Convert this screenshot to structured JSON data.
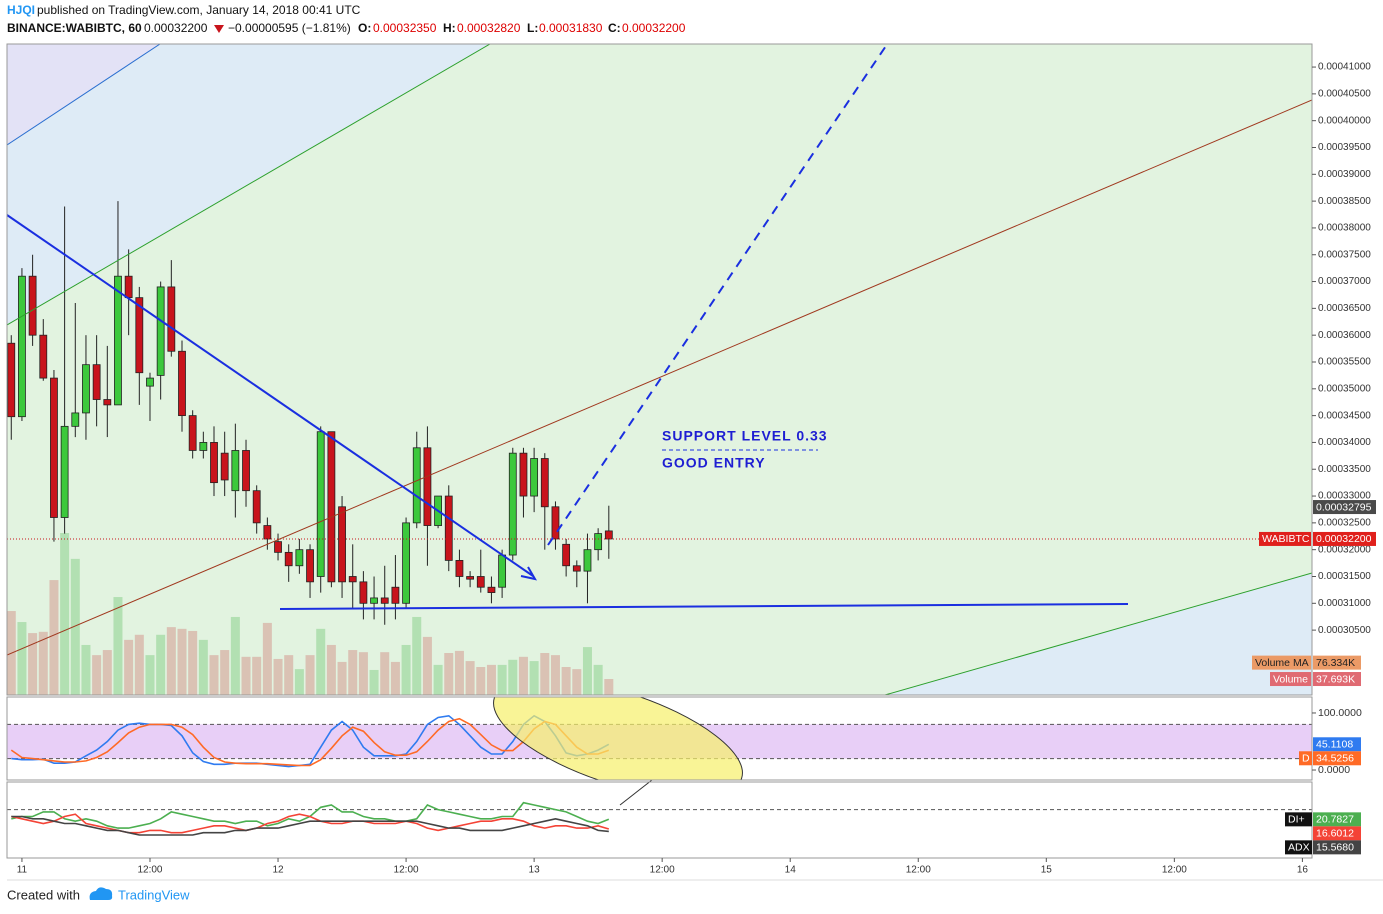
{
  "header": {
    "author": "HJQI",
    "published": "published on TradingView.com, January 14, 2018 00:41 UTC",
    "symbol": "BINANCE:WABIBTC, 60",
    "last": "0.00032200",
    "change": "−0.00000595 (−1.81%)",
    "open_label": "O:",
    "open": "0.00032350",
    "high_label": "H:",
    "high": "0.00032820",
    "low_label": "L:",
    "low": "0.00031830",
    "close_label": "C:",
    "close": "0.00032200"
  },
  "footer": {
    "created": "Created with",
    "brand": "TradingView"
  },
  "chart_data": [
    {
      "type": "candlestick",
      "name": "WABIBTC",
      "up_color": "#3cc83c",
      "down_color": "#c8141c",
      "x": [
        -1,
        0,
        1,
        2,
        3,
        4,
        5,
        6,
        7,
        8,
        9,
        10,
        11,
        12,
        13,
        14,
        15,
        16,
        17,
        18,
        19,
        20,
        21,
        22,
        23,
        24,
        25,
        26,
        27,
        28,
        29,
        30,
        31,
        32,
        33,
        34,
        35,
        36,
        37,
        38,
        39,
        40,
        41,
        42,
        43,
        44,
        45,
        46,
        47,
        48,
        49,
        50,
        51,
        52,
        53,
        54,
        55
      ],
      "open": [
        0.0003585,
        0.0003448,
        0.000371,
        0.00036,
        0.000352,
        0.000326,
        0.000343,
        0.0003455,
        0.0003545,
        0.000348,
        0.000347,
        0.000371,
        0.000367,
        0.0003505,
        0.0003525,
        0.000369,
        0.000357,
        0.000345,
        0.0003385,
        0.00034,
        0.000338,
        0.000331,
        0.0003385,
        0.000331,
        0.0003245,
        0.0003215,
        0.0003195,
        0.000317,
        0.00032,
        0.000315,
        0.000342,
        0.000328,
        0.000315,
        0.000314,
        0.00031,
        0.000311,
        0.000313,
        0.00031,
        0.000325,
        0.000339,
        0.0003245,
        0.00033,
        0.000318,
        0.000315,
        0.000315,
        0.000313,
        0.000313,
        0.000319,
        0.000338,
        0.00033,
        0.000337,
        0.000328,
        0.000321,
        0.000317,
        0.000316,
        0.00032,
        0.0003235
      ],
      "high": [
        0.00036,
        0.0003725,
        0.000375,
        0.000363,
        0.0003535,
        0.000384,
        0.000366,
        0.00036,
        0.00036,
        0.000358,
        0.000385,
        0.000376,
        0.000369,
        0.000353,
        0.00037,
        0.000374,
        0.000359,
        0.000346,
        0.000342,
        0.000343,
        0.000342,
        0.0003435,
        0.0003405,
        0.000332,
        0.000326,
        0.000323,
        0.000321,
        0.000322,
        0.000321,
        0.000343,
        0.000342,
        0.00033,
        0.000321,
        0.000316,
        0.000315,
        0.000317,
        0.000319,
        0.000326,
        0.000342,
        0.000343,
        0.00033,
        0.000332,
        0.00032,
        0.000316,
        0.00032,
        0.000315,
        0.00032,
        0.000339,
        0.000339,
        0.000339,
        0.000338,
        0.000329,
        0.000322,
        0.000318,
        0.000323,
        0.000324,
        0.0003282
      ],
      "low": [
        0.0003405,
        0.000344,
        0.000358,
        0.0003515,
        0.0003215,
        0.000323,
        0.000341,
        0.0003405,
        0.000343,
        0.000341,
        0.000347,
        0.00036,
        0.000347,
        0.000344,
        0.000348,
        0.000356,
        0.000342,
        0.000337,
        0.000337,
        0.00033,
        0.00033,
        0.000326,
        0.000328,
        0.000323,
        0.00032,
        0.000318,
        0.000314,
        0.0003155,
        0.000311,
        0.000312,
        0.000313,
        0.000311,
        0.000309,
        0.000307,
        0.000307,
        0.000306,
        0.000307,
        0.000309,
        0.000324,
        0.000317,
        0.000324,
        0.000316,
        0.000313,
        0.000313,
        0.000312,
        0.00031,
        0.000311,
        0.000318,
        0.000326,
        0.000327,
        0.00032,
        0.00032,
        0.000315,
        0.000313,
        0.00031,
        0.000318,
        0.0003183
      ],
      "close": [
        0.0003448,
        0.000371,
        0.00036,
        0.000352,
        0.000326,
        0.000343,
        0.0003455,
        0.0003545,
        0.000348,
        0.000347,
        0.000371,
        0.000367,
        0.000353,
        0.000352,
        0.000369,
        0.000357,
        0.000345,
        0.0003385,
        0.00034,
        0.0003325,
        0.000333,
        0.0003385,
        0.000331,
        0.000325,
        0.000322,
        0.0003195,
        0.000317,
        0.00032,
        0.000314,
        0.000342,
        0.000314,
        0.000314,
        0.000314,
        0.00031,
        0.000311,
        0.00031,
        0.00031,
        0.000325,
        0.000339,
        0.0003245,
        0.00033,
        0.000318,
        0.000315,
        0.0003145,
        0.000313,
        0.000312,
        0.000319,
        0.000338,
        0.00033,
        0.000337,
        0.000328,
        0.000322,
        0.000317,
        0.000316,
        0.00032,
        0.000323,
        0.000322
      ],
      "xlim": [
        -1.4,
        120.9
      ],
      "xticks": [
        {
          "value": 0,
          "label": "11"
        },
        {
          "value": 12,
          "label": "12:00"
        },
        {
          "value": 24,
          "label": "12"
        },
        {
          "value": 36,
          "label": "12:00"
        },
        {
          "value": 48,
          "label": "13"
        },
        {
          "value": 60,
          "label": "12:00"
        },
        {
          "value": 72,
          "label": "14"
        },
        {
          "value": 84,
          "label": "12:00"
        },
        {
          "value": 96,
          "label": "15"
        },
        {
          "value": 108,
          "label": "12:00"
        },
        {
          "value": 120,
          "label": "16"
        }
      ],
      "ylim": [
        0.0002929,
        0.0004143
      ],
      "yticks": [
        {
          "value": 0.000305,
          "label": "0.00030500"
        },
        {
          "value": 0.00031,
          "label": "0.00031000"
        },
        {
          "value": 0.000315,
          "label": "0.00031500"
        },
        {
          "value": 0.00032,
          "label": "0.00032000"
        },
        {
          "value": 0.000325,
          "label": "0.00032500"
        },
        {
          "value": 0.00033,
          "label": "0.00033000"
        },
        {
          "value": 0.000335,
          "label": "0.00033500"
        },
        {
          "value": 0.00034,
          "label": "0.00034000"
        },
        {
          "value": 0.000345,
          "label": "0.00034500"
        },
        {
          "value": 0.00035,
          "label": "0.00035000"
        },
        {
          "value": 0.000355,
          "label": "0.00035500"
        },
        {
          "value": 0.00036,
          "label": "0.00036000"
        },
        {
          "value": 0.000365,
          "label": "0.00036500"
        },
        {
          "value": 0.00037,
          "label": "0.00037000"
        },
        {
          "value": 0.000375,
          "label": "0.00037500"
        },
        {
          "value": 0.00038,
          "label": "0.00038000"
        },
        {
          "value": 0.000385,
          "label": "0.00038500"
        },
        {
          "value": 0.00039,
          "label": "0.00039000"
        },
        {
          "value": 0.000395,
          "label": "0.00039500"
        },
        {
          "value": 0.0004,
          "label": "0.00040000"
        },
        {
          "value": 0.000405,
          "label": "0.00040500"
        },
        {
          "value": 0.00041,
          "label": "0.00041000"
        }
      ],
      "last_price": {
        "value": 0.000322,
        "label": "0.00032200"
      },
      "cursor_price": {
        "value": 0.00032795,
        "label": "0.00032795"
      },
      "annotations": [
        "SUPPORT LEVEL 0.33",
        "GOOD ENTRY"
      ],
      "volume": {
        "name": "Volume",
        "up_color": "#a9dca9",
        "down_color": "#d8b9ac",
        "tag_color": "#e06a72",
        "last_label": "37.693K",
        "values": [
          198000,
          172000,
          146000,
          149000,
          271000,
          382000,
          321000,
          118000,
          94000,
          106000,
          231000,
          130000,
          142000,
          94000,
          142000,
          160000,
          156000,
          151000,
          130000,
          94000,
          106000,
          184000,
          90000,
          90000,
          170000,
          85000,
          94000,
          61000,
          94000,
          156000,
          118000,
          78000,
          106000,
          101000,
          59000,
          101000,
          78000,
          118000,
          184000,
          137000,
          71000,
          99000,
          104000,
          80000,
          66000,
          71000,
          71000,
          83000,
          90000,
          80000,
          99000,
          94000,
          66000,
          61000,
          113000,
          71000,
          37693
        ]
      },
      "volume_ma": {
        "name": "Volume MA",
        "value": 76334,
        "label": "76.334K",
        "color": "#eb9a66"
      }
    },
    {
      "type": "line",
      "ylim": [
        -17.5,
        128
      ],
      "yticks": [
        {
          "value": 100,
          "label": "100.0000"
        },
        {
          "value": 0,
          "label": "0.0000"
        }
      ],
      "band": [
        20,
        80
      ],
      "band_color": "#e8cff7",
      "series": [
        {
          "color": "#2f7bf0",
          "last_label": "45.1108",
          "values": [
            20,
            18,
            18,
            19,
            12,
            12,
            14,
            25,
            35,
            50,
            70,
            80,
            82,
            80,
            80,
            78,
            60,
            30,
            15,
            10,
            10,
            12,
            12,
            12,
            10,
            8,
            6,
            8,
            10,
            40,
            70,
            85,
            70,
            40,
            25,
            25,
            25,
            28,
            50,
            80,
            92,
            95,
            80,
            60,
            40,
            28,
            28,
            50,
            80,
            95,
            85,
            60,
            30,
            25,
            28,
            35,
            45.1108
          ]
        },
        {
          "name": "D",
          "color": "#ff6a26",
          "last_label": "34.5256",
          "values": [
            35,
            22,
            20,
            18,
            16,
            14,
            14,
            16,
            22,
            32,
            48,
            65,
            75,
            80,
            80,
            80,
            75,
            62,
            40,
            22,
            14,
            12,
            11,
            11,
            11,
            10,
            9,
            8,
            8,
            18,
            38,
            60,
            75,
            68,
            48,
            32,
            26,
            26,
            32,
            50,
            70,
            85,
            90,
            80,
            62,
            44,
            34,
            34,
            50,
            72,
            85,
            80,
            60,
            40,
            28,
            28,
            34.5256
          ]
        }
      ]
    },
    {
      "type": "line",
      "ylim": [
        4,
        37
      ],
      "level": 25,
      "series": [
        {
          "name": "DI+",
          "color": "#4caf50",
          "last_label": "20.7827",
          "values": [
            21,
            22,
            22,
            24,
            24,
            21,
            20,
            21,
            20,
            18,
            17,
            17,
            18,
            19,
            21,
            24,
            23,
            22,
            21,
            20,
            20,
            19,
            20,
            20,
            18,
            19,
            21,
            20,
            22,
            26,
            27,
            24,
            24,
            22,
            21,
            21,
            20,
            20,
            21,
            27,
            25,
            24,
            23,
            22,
            21,
            21,
            22,
            22,
            28,
            27,
            26,
            25,
            24,
            22,
            20,
            19,
            20.7827
          ]
        },
        {
          "color": "#f44336",
          "last_label": "16.6012",
          "values": [
            22,
            21,
            20,
            19,
            20,
            22,
            23,
            19,
            18,
            17,
            16,
            15,
            15,
            16,
            16,
            15,
            15,
            16,
            17,
            18,
            18,
            17,
            16,
            17,
            19,
            20,
            22,
            23,
            22,
            20,
            19,
            19,
            20,
            20,
            19,
            19,
            19,
            20,
            19,
            17,
            16,
            17,
            18,
            19,
            20,
            20,
            21,
            21,
            20,
            18,
            17,
            18,
            18,
            17,
            17,
            18,
            16.6012
          ]
        },
        {
          "name": "ADX",
          "color": "#444444",
          "last_label": "15.5680",
          "values": [
            22,
            22,
            21,
            21,
            20,
            19,
            19,
            18,
            17,
            16,
            16,
            15,
            14,
            14,
            14,
            14,
            14,
            14,
            15,
            15,
            15,
            16,
            16,
            17,
            17,
            17,
            18,
            19,
            20,
            20,
            20,
            20,
            20,
            20,
            20,
            20,
            20,
            20,
            20,
            19,
            18,
            17,
            17,
            16,
            16,
            16,
            16,
            17,
            18,
            19,
            20,
            21,
            20,
            19,
            18,
            16,
            15.568
          ]
        }
      ]
    }
  ]
}
